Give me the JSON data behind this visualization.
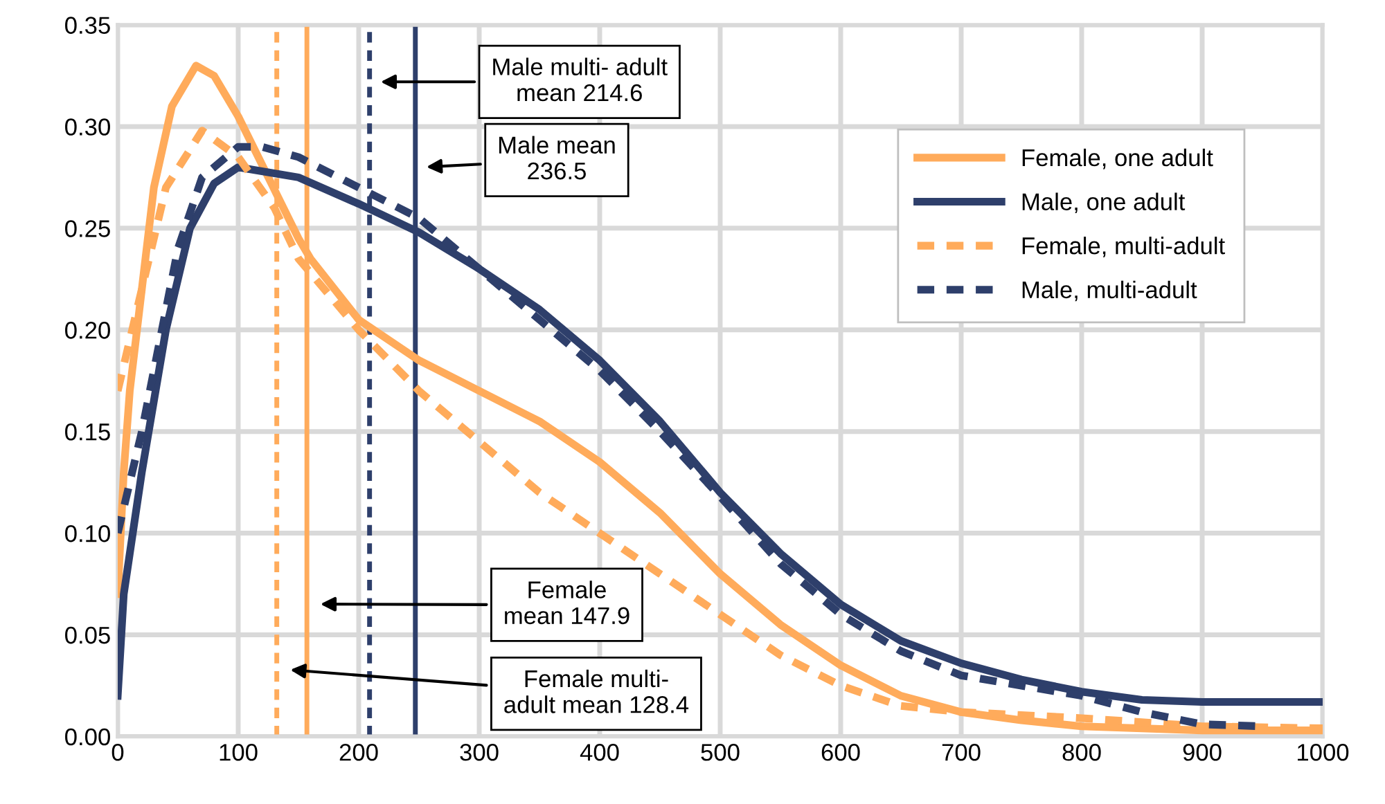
{
  "chart_data": {
    "type": "line",
    "series": [
      {
        "name": "Female, one adult",
        "color": "#ffab5b",
        "line_style": "solid",
        "x": [
          0,
          5,
          10,
          20,
          30,
          45,
          65,
          80,
          100,
          125,
          150,
          160,
          200,
          250,
          300,
          350,
          400,
          450,
          500,
          550,
          600,
          650,
          700,
          750,
          800,
          900,
          1000
        ],
        "values": [
          0.07,
          0.13,
          0.17,
          0.22,
          0.27,
          0.31,
          0.33,
          0.325,
          0.305,
          0.275,
          0.245,
          0.235,
          0.205,
          0.185,
          0.17,
          0.155,
          0.135,
          0.11,
          0.08,
          0.055,
          0.035,
          0.02,
          0.012,
          0.008,
          0.005,
          0.003,
          0.003
        ]
      },
      {
        "name": "Male, one adult",
        "color": "#2e3f6b",
        "line_style": "solid",
        "x": [
          0,
          5,
          10,
          20,
          40,
          60,
          80,
          100,
          150,
          200,
          250,
          300,
          350,
          400,
          450,
          500,
          550,
          600,
          650,
          700,
          750,
          800,
          850,
          900,
          1000
        ],
        "values": [
          0.02,
          0.07,
          0.09,
          0.13,
          0.2,
          0.25,
          0.272,
          0.28,
          0.275,
          0.262,
          0.248,
          0.23,
          0.21,
          0.185,
          0.155,
          0.12,
          0.09,
          0.065,
          0.047,
          0.036,
          0.028,
          0.022,
          0.018,
          0.017,
          0.017
        ]
      },
      {
        "name": "Female, multi-adult",
        "color": "#ffab5b",
        "line_style": "dashed",
        "x": [
          0,
          20,
          40,
          70,
          100,
          130,
          150,
          200,
          250,
          300,
          350,
          400,
          450,
          500,
          550,
          600,
          650,
          700,
          800,
          900,
          1000
        ],
        "values": [
          0.17,
          0.22,
          0.27,
          0.298,
          0.285,
          0.26,
          0.235,
          0.2,
          0.17,
          0.145,
          0.12,
          0.1,
          0.08,
          0.06,
          0.04,
          0.025,
          0.015,
          0.012,
          0.009,
          0.005,
          0.004
        ]
      },
      {
        "name": "Male, multi-adult",
        "color": "#2e3f6b",
        "line_style": "dashed",
        "x": [
          0,
          20,
          50,
          70,
          100,
          120,
          150,
          200,
          250,
          300,
          350,
          400,
          450,
          500,
          550,
          600,
          650,
          700,
          750,
          800,
          850,
          900,
          950
        ],
        "values": [
          0.1,
          0.15,
          0.24,
          0.275,
          0.29,
          0.29,
          0.285,
          0.27,
          0.255,
          0.23,
          0.205,
          0.18,
          0.15,
          0.118,
          0.085,
          0.06,
          0.042,
          0.03,
          0.025,
          0.02,
          0.012,
          0.006,
          0.005
        ]
      }
    ],
    "xlim": [
      0,
      1000
    ],
    "ylim": [
      0,
      0.35
    ],
    "xticks": [
      0,
      100,
      200,
      300,
      400,
      500,
      600,
      700,
      800,
      900,
      1000
    ],
    "yticks": [
      {
        "value": 0,
        "label": "0.00"
      },
      {
        "value": 0.05,
        "label": "0.05"
      },
      {
        "value": 0.1,
        "label": "0.10"
      },
      {
        "value": 0.15,
        "label": "0.15"
      },
      {
        "value": 0.2,
        "label": "0.20"
      },
      {
        "value": 0.25,
        "label": "0.25"
      },
      {
        "value": 0.3,
        "label": "0.30"
      },
      {
        "value": 0.35,
        "label": "0.35"
      }
    ],
    "ref_lines": [
      {
        "axis": "x",
        "value": 132,
        "color": "#ffab5b",
        "line_style": "dashed"
      },
      {
        "axis": "x",
        "value": 157,
        "color": "#ffab5b",
        "line_style": "solid"
      },
      {
        "axis": "x",
        "value": 209,
        "color": "#2e3f6b",
        "line_style": "dashed"
      },
      {
        "axis": "x",
        "value": 247,
        "color": "#2e3f6b",
        "line_style": "solid"
      }
    ],
    "annotations": [
      "Male multi- adult\nmean 214.6",
      "Male mean\n236.5",
      "Female\nmean 147.9",
      "Female multi-\nadult mean 128.4"
    ],
    "grid": true,
    "legend": "top right",
    "marker": "none"
  }
}
